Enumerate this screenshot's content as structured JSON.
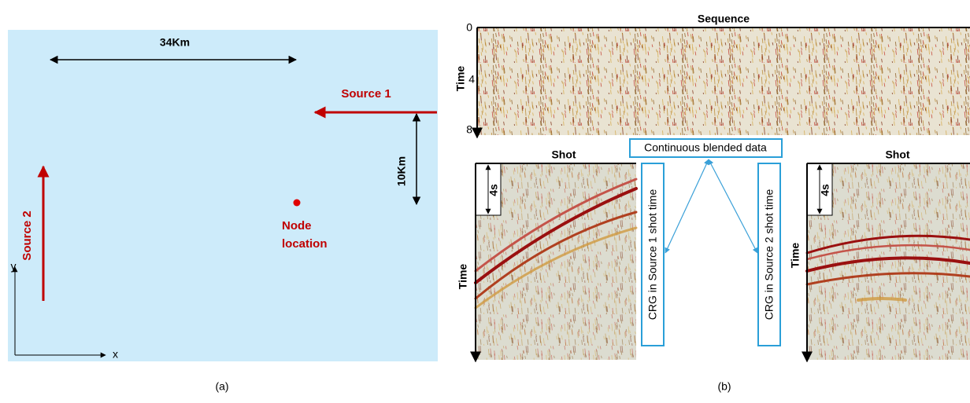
{
  "panel_a": {
    "distance_x": "34Km",
    "source_1": "Source 1",
    "distance_y": "10Km",
    "source_2": "Source 2",
    "node_label": [
      "Node",
      "location"
    ],
    "axis_y": "y",
    "axis_x": "x",
    "caption": "(a)"
  },
  "panel_b": {
    "sequence": {
      "title": "Sequence",
      "y_label": "Time",
      "ticks": [
        0,
        4,
        8
      ]
    },
    "blended_label": "Continuous blended data",
    "crg_1": "CRG in Source 1  shot time",
    "crg_2": "CRG in Source 2 shot time",
    "shot_left": {
      "title": "Shot",
      "scale": "4s",
      "y_label": "Time"
    },
    "shot_right": {
      "title": "Shot",
      "scale": "4s",
      "y_label": "Time"
    },
    "caption": "(b)"
  }
}
